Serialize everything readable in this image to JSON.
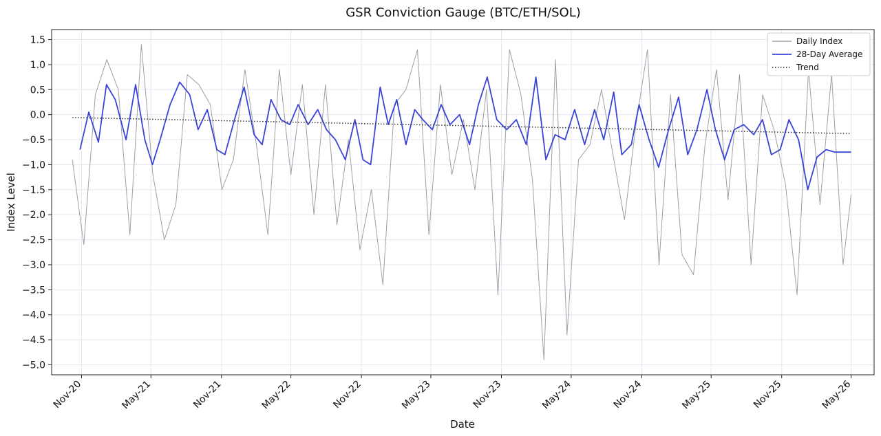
{
  "chart_data": {
    "type": "line",
    "title": "GSR Conviction Gauge (BTC/ETH/SOL)",
    "xlabel": "Date",
    "ylabel": "Index Level",
    "x_ticks": [
      "Nov-20",
      "May-21",
      "Nov-21",
      "May-22",
      "Nov-22",
      "May-23",
      "Nov-23",
      "May-24",
      "Nov-24",
      "May-25",
      "Nov-25",
      "May-26"
    ],
    "y_ticks": [
      1.5,
      1.0,
      0.5,
      0.0,
      -0.5,
      -1.0,
      -1.5,
      -2.0,
      -2.5,
      -3.0,
      -3.5,
      -4.0,
      -4.5,
      -5.0
    ],
    "y_tick_labels": [
      "1.5",
      "1.0",
      "0.5",
      "0.0",
      "−0.5",
      "−1.0",
      "−1.5",
      "−2.0",
      "−2.5",
      "−3.0",
      "−3.5",
      "−4.0",
      "−4.5",
      "−5.0"
    ],
    "xlim": [
      "2020-08-15",
      "2026-06-30"
    ],
    "ylim": [
      -5.2,
      1.7
    ],
    "grid": true,
    "legend_position": "top-right",
    "x_start": "2020-10-08",
    "x_end": "2026-05-01",
    "series": [
      {
        "name": "Daily Index",
        "color": "#a09ea4",
        "style": "solid",
        "x": [
          "2020-10-08",
          "2020-11-07",
          "2020-12-07",
          "2021-01-06",
          "2021-02-05",
          "2021-03-07",
          "2021-04-06",
          "2021-05-06",
          "2021-06-05",
          "2021-07-05",
          "2021-08-04",
          "2021-09-03",
          "2021-10-03",
          "2021-11-02",
          "2021-12-02",
          "2022-01-01",
          "2022-01-31",
          "2022-03-02",
          "2022-04-01",
          "2022-05-01",
          "2022-05-31",
          "2022-06-30",
          "2022-07-30",
          "2022-08-29",
          "2022-09-28",
          "2022-10-28",
          "2022-11-27",
          "2022-12-27",
          "2023-01-26",
          "2023-02-25",
          "2023-03-27",
          "2023-04-26",
          "2023-05-26",
          "2023-06-25",
          "2023-07-25",
          "2023-08-24",
          "2023-09-23",
          "2023-10-23",
          "2023-11-22",
          "2023-12-22",
          "2024-01-21",
          "2024-02-20",
          "2024-03-21",
          "2024-04-20",
          "2024-05-20",
          "2024-06-19",
          "2024-07-19",
          "2024-08-18",
          "2024-09-17",
          "2024-10-17",
          "2024-11-16",
          "2024-12-16",
          "2025-01-15",
          "2025-02-14",
          "2025-03-16",
          "2025-04-15",
          "2025-05-15",
          "2025-06-14",
          "2025-07-14",
          "2025-08-13",
          "2025-09-12",
          "2025-10-12",
          "2025-11-11",
          "2025-12-11",
          "2026-01-10",
          "2026-02-09",
          "2026-03-11",
          "2026-04-10",
          "2026-05-01"
        ],
        "values": [
          -0.9,
          -2.6,
          0.4,
          1.1,
          0.5,
          -2.4,
          1.4,
          -1.2,
          -2.5,
          -1.8,
          0.8,
          0.6,
          0.2,
          -1.5,
          -0.9,
          0.9,
          -0.6,
          -2.4,
          0.9,
          -1.2,
          0.6,
          -2.0,
          0.6,
          -2.2,
          -0.5,
          -2.7,
          -1.5,
          -3.4,
          0.2,
          0.5,
          1.3,
          -2.4,
          0.6,
          -1.2,
          -0.1,
          -1.5,
          0.5,
          -3.6,
          1.3,
          0.4,
          -1.3,
          -4.9,
          1.1,
          -4.4,
          -0.9,
          -0.6,
          0.5,
          -0.8,
          -2.1,
          -0.2,
          1.3,
          -3.0,
          0.4,
          -2.8,
          -3.2,
          -0.6,
          0.9,
          -1.7,
          0.8,
          -3.0,
          0.4,
          -0.3,
          -1.4,
          -3.6,
          0.9,
          -1.8,
          0.8,
          -3.0,
          -1.6
        ]
      },
      {
        "name": "28-Day Average",
        "color": "#3a43d8",
        "style": "solid",
        "x": [
          "2020-10-28",
          "2020-11-20",
          "2020-12-15",
          "2021-01-05",
          "2021-01-28",
          "2021-02-25",
          "2021-03-22",
          "2021-04-15",
          "2021-05-05",
          "2021-05-25",
          "2021-06-20",
          "2021-07-15",
          "2021-08-10",
          "2021-09-01",
          "2021-09-25",
          "2021-10-20",
          "2021-11-10",
          "2021-12-05",
          "2021-12-30",
          "2022-01-25",
          "2022-02-15",
          "2022-03-10",
          "2022-04-05",
          "2022-04-28",
          "2022-05-20",
          "2022-06-15",
          "2022-07-10",
          "2022-08-02",
          "2022-08-25",
          "2022-09-20",
          "2022-10-15",
          "2022-11-05",
          "2022-11-25",
          "2022-12-20",
          "2023-01-10",
          "2023-02-01",
          "2023-02-25",
          "2023-03-20",
          "2023-04-10",
          "2023-05-05",
          "2023-05-28",
          "2023-06-20",
          "2023-07-15",
          "2023-08-10",
          "2023-09-02",
          "2023-09-25",
          "2023-10-20",
          "2023-11-15",
          "2023-12-10",
          "2024-01-05",
          "2024-01-30",
          "2024-02-25",
          "2024-03-20",
          "2024-04-15",
          "2024-05-10",
          "2024-06-05",
          "2024-07-01",
          "2024-07-25",
          "2024-08-20",
          "2024-09-10",
          "2024-10-05",
          "2024-10-25",
          "2024-11-20",
          "2024-12-15",
          "2025-01-10",
          "2025-02-05",
          "2025-03-01",
          "2025-03-25",
          "2025-04-20",
          "2025-05-12",
          "2025-06-05",
          "2025-06-30",
          "2025-07-25",
          "2025-08-20",
          "2025-09-12",
          "2025-10-05",
          "2025-10-28",
          "2025-11-20",
          "2025-12-15",
          "2026-01-08",
          "2026-02-01",
          "2026-02-25",
          "2026-03-20",
          "2026-04-10",
          "2026-05-01"
        ],
        "values": [
          -0.7,
          0.05,
          -0.55,
          0.6,
          0.3,
          -0.5,
          0.6,
          -0.5,
          -1.0,
          -0.5,
          0.2,
          0.65,
          0.4,
          -0.3,
          0.1,
          -0.7,
          -0.8,
          -0.1,
          0.55,
          -0.4,
          -0.6,
          0.3,
          -0.1,
          -0.2,
          0.2,
          -0.2,
          0.1,
          -0.3,
          -0.5,
          -0.9,
          -0.1,
          -0.9,
          -1.0,
          0.55,
          -0.2,
          0.3,
          -0.6,
          0.1,
          -0.1,
          -0.3,
          0.2,
          -0.2,
          0.0,
          -0.6,
          0.2,
          0.75,
          -0.1,
          -0.3,
          -0.1,
          -0.6,
          0.75,
          -0.9,
          -0.4,
          -0.5,
          0.1,
          -0.6,
          0.1,
          -0.5,
          0.45,
          -0.8,
          -0.6,
          0.2,
          -0.5,
          -1.05,
          -0.3,
          0.35,
          -0.8,
          -0.3,
          0.5,
          -0.3,
          -0.9,
          -0.3,
          -0.2,
          -0.4,
          -0.1,
          -0.8,
          -0.7,
          -0.1,
          -0.5,
          -1.5,
          -0.85,
          -0.7,
          -0.75,
          -0.75,
          -0.75
        ]
      },
      {
        "name": "Trend",
        "color": "#333333",
        "style": "dotted",
        "x": [
          "2020-10-08",
          "2026-05-01"
        ],
        "values": [
          -0.06,
          -0.38
        ]
      }
    ]
  }
}
